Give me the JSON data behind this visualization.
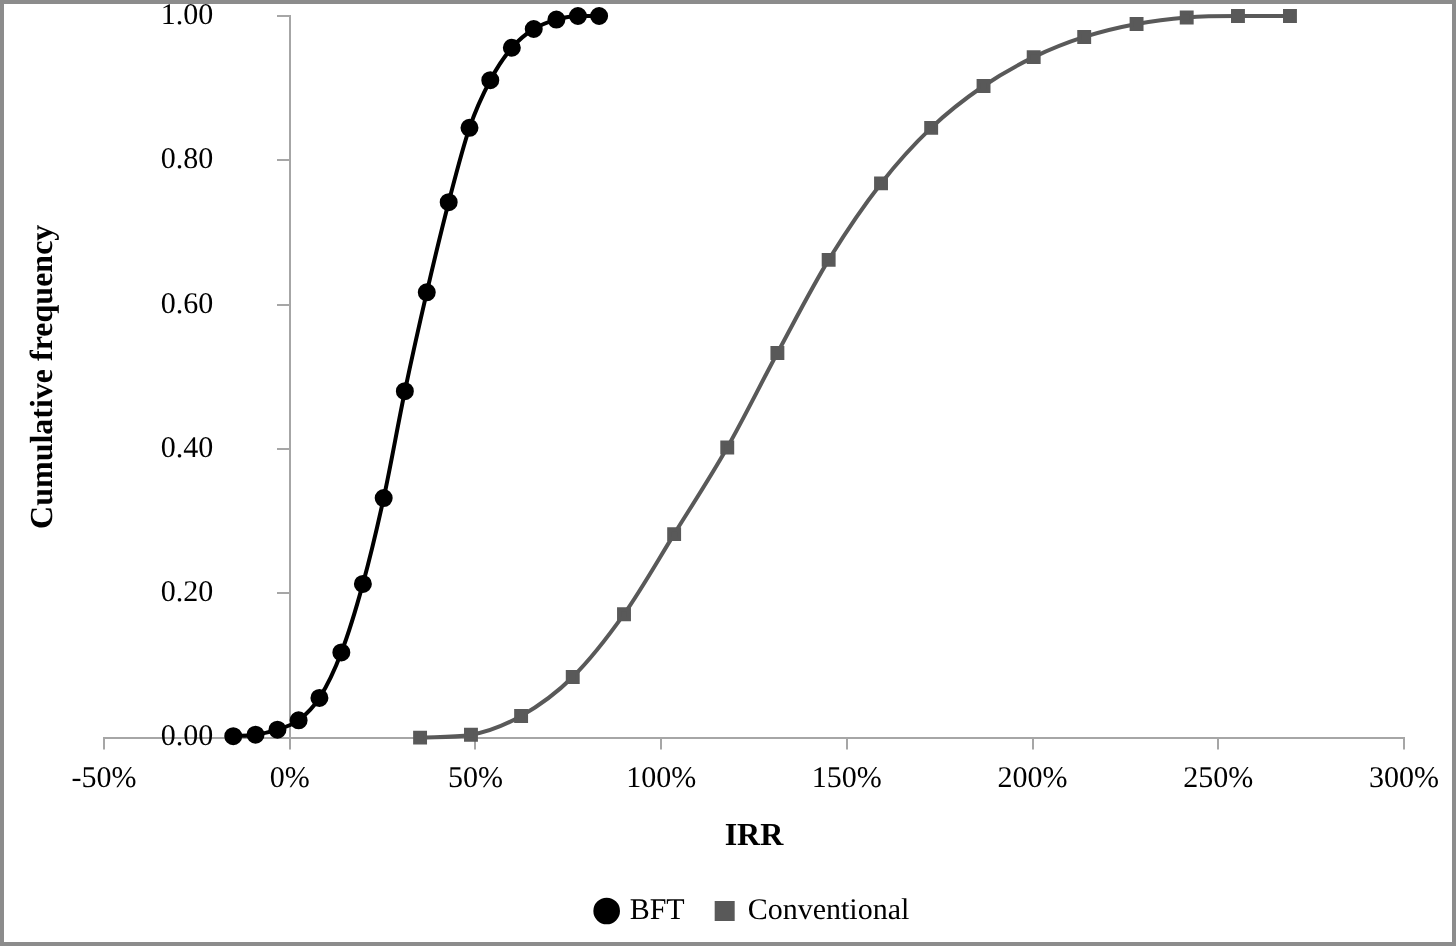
{
  "chart_data": {
    "type": "line",
    "xlabel": "IRR",
    "ylabel": "Cumulative frequency",
    "xlim": [
      -50,
      300
    ],
    "xticks": [
      {
        "value": -50,
        "label": "-50%"
      },
      {
        "value": 0,
        "label": "0%"
      },
      {
        "value": 50,
        "label": "50%"
      },
      {
        "value": 100,
        "label": "100%"
      },
      {
        "value": 150,
        "label": "150%"
      },
      {
        "value": 200,
        "label": "200%"
      },
      {
        "value": 250,
        "label": "250%"
      },
      {
        "value": 300,
        "label": "300%"
      }
    ],
    "ylim": [
      0,
      1
    ],
    "yticks": [
      {
        "value": 0,
        "label": "0.00"
      },
      {
        "value": 0.2,
        "label": "0.20"
      },
      {
        "value": 0.4,
        "label": "0.40"
      },
      {
        "value": 0.6,
        "label": "0.60"
      },
      {
        "value": 0.8,
        "label": "0.80"
      },
      {
        "value": 1,
        "label": "1.00"
      }
    ],
    "grid": false,
    "legend": "bottom",
    "line_style": "solid",
    "series": [
      {
        "name": "BFT",
        "color": "#000000",
        "marker": "circle",
        "x": [
          -15.2,
          -9.2,
          -3.3,
          2.4,
          8.0,
          13.9,
          19.7,
          25.3,
          31.0,
          36.9,
          42.8,
          48.4,
          54.0,
          59.8,
          65.7,
          71.8,
          77.6,
          83.3
        ],
        "values": [
          0.002,
          0.004,
          0.011,
          0.024,
          0.055,
          0.118,
          0.213,
          0.332,
          0.48,
          0.617,
          0.742,
          0.845,
          0.911,
          0.956,
          0.982,
          0.995,
          1.0,
          1.0
        ]
      },
      {
        "name": "Conventional",
        "color": "#595959",
        "marker": "square",
        "x": [
          35.1,
          48.8,
          62.3,
          76.2,
          90.0,
          103.5,
          117.8,
          131.3,
          145.1,
          159.2,
          172.7,
          186.8,
          200.3,
          213.9,
          228.0,
          241.5,
          255.3,
          269.3
        ],
        "values": [
          0,
          0.004,
          0.03,
          0.084,
          0.171,
          0.282,
          0.402,
          0.533,
          0.662,
          0.768,
          0.845,
          0.903,
          0.943,
          0.971,
          0.989,
          0.998,
          1.0,
          1.0
        ]
      }
    ]
  }
}
